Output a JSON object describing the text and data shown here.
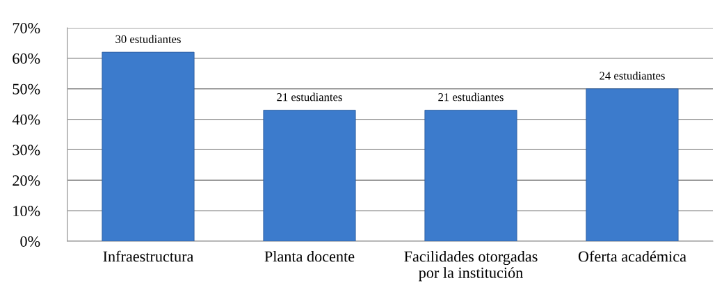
{
  "chart_data": {
    "type": "bar",
    "categories": [
      "Infraestructura",
      "Planta docente",
      "Facilidades otorgadas\npor la institución",
      "Oferta académica"
    ],
    "values": [
      62,
      43,
      43,
      50
    ],
    "annotations": [
      {
        "text": "30 estudiantes",
        "x": "Infraestructura",
        "y": 62
      },
      {
        "text": "21 estudiantes",
        "x": "Planta docente",
        "y": 43
      },
      {
        "text": "21 estudiantes",
        "x": "Facilidades otorgadas\npor la institución",
        "y": 43
      },
      {
        "text": "24 estudiantes",
        "x": "Oferta académica",
        "y": 50
      }
    ],
    "color": "#3c7bcc",
    "ylim": [
      0,
      70
    ],
    "yticks": [
      {
        "value": 0,
        "label": "0%"
      },
      {
        "value": 10,
        "label": "10%"
      },
      {
        "value": 20,
        "label": "20%"
      },
      {
        "value": 30,
        "label": "30%"
      },
      {
        "value": 40,
        "label": "40%"
      },
      {
        "value": 50,
        "label": "50%"
      },
      {
        "value": 60,
        "label": "60%"
      },
      {
        "value": 70,
        "label": "70%"
      }
    ],
    "grid": "y"
  }
}
